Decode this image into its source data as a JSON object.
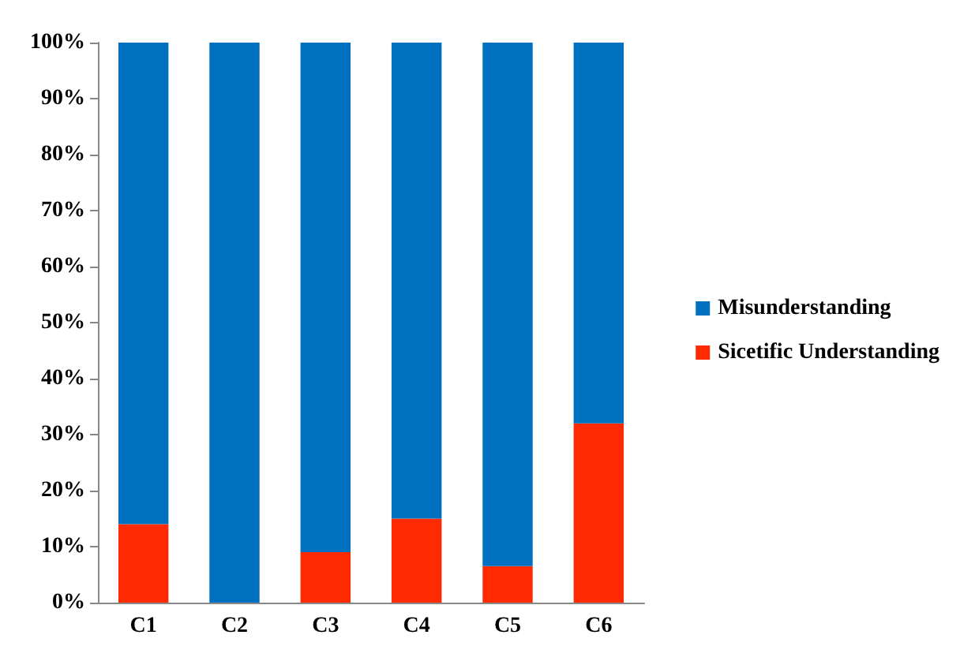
{
  "chart_data": {
    "type": "bar",
    "stacked": true,
    "categories": [
      "C1",
      "C2",
      "C3",
      "C4",
      "C5",
      "C6"
    ],
    "series": [
      {
        "name": "Sicetific Understanding",
        "color": "#ff2a00",
        "values": [
          14,
          0,
          9,
          15,
          6.5,
          32
        ]
      },
      {
        "name": "Misunderstanding",
        "color": "#0070c0",
        "values": [
          86,
          100,
          91,
          85,
          93.5,
          68
        ]
      }
    ],
    "ylim": [
      0,
      100
    ],
    "yticks": [
      {
        "value": 0,
        "label": "0%"
      },
      {
        "value": 10,
        "label": "10%"
      },
      {
        "value": 20,
        "label": "20%"
      },
      {
        "value": 30,
        "label": "30%"
      },
      {
        "value": 40,
        "label": "40%"
      },
      {
        "value": 50,
        "label": "50%"
      },
      {
        "value": 60,
        "label": "60%"
      },
      {
        "value": 70,
        "label": "70%"
      },
      {
        "value": 80,
        "label": "80%"
      },
      {
        "value": 90,
        "label": "90%"
      },
      {
        "value": 100,
        "label": "100%"
      }
    ],
    "grid": false,
    "legend": "right"
  }
}
